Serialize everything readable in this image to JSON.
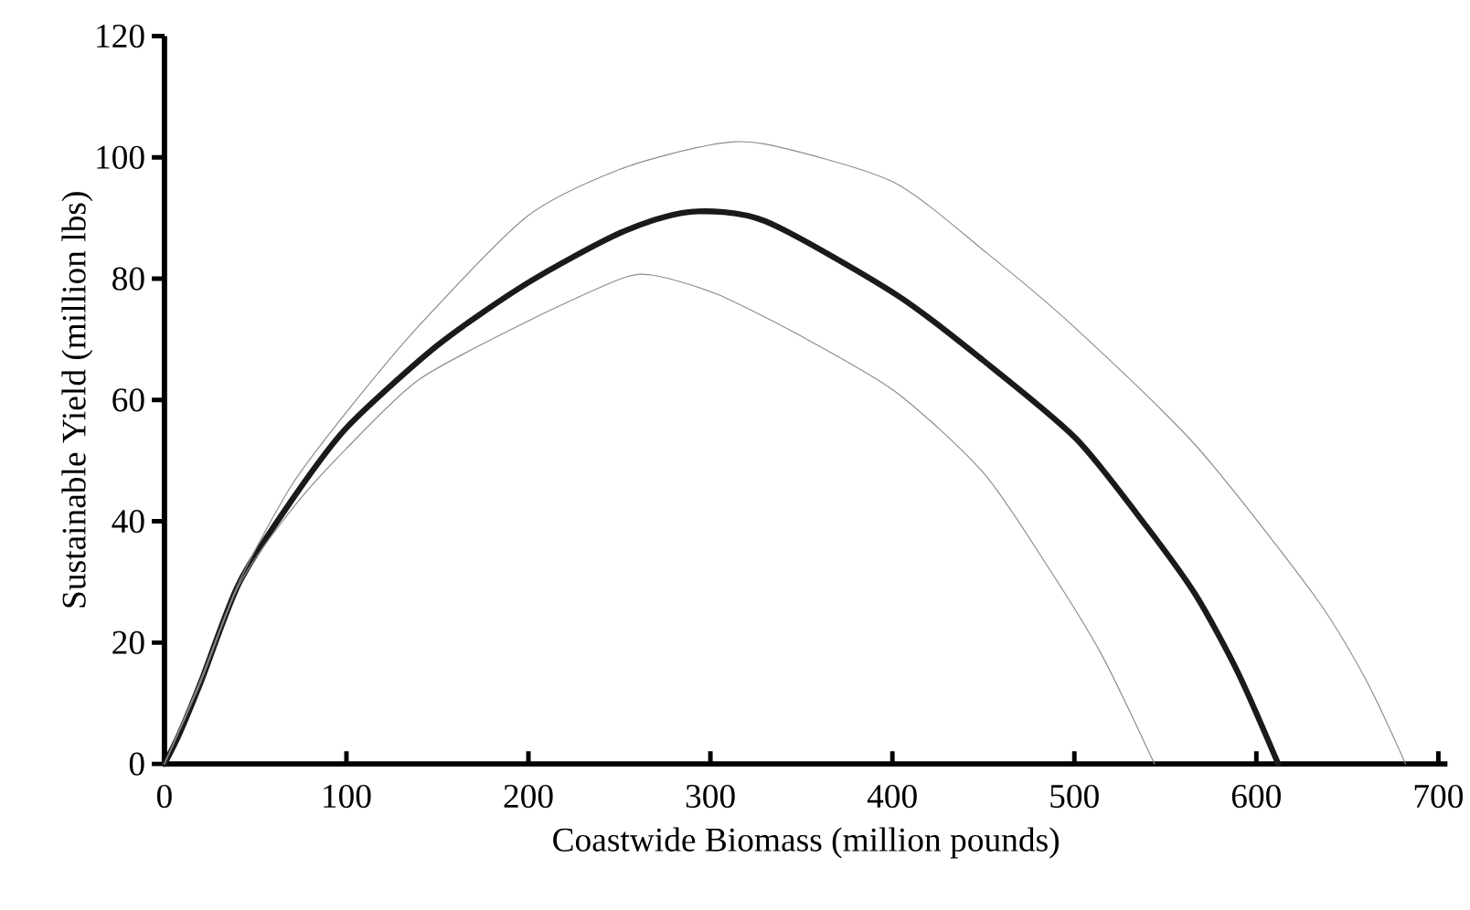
{
  "chart_data": {
    "type": "line",
    "xlabel": "Coastwide Biomass (million pounds)",
    "ylabel": "Sustainable Yield (million lbs)",
    "xlim": [
      0,
      705
    ],
    "ylim": [
      0,
      120
    ],
    "xticks": [
      0,
      100,
      200,
      300,
      400,
      500,
      600,
      700
    ],
    "yticks": [
      0,
      20,
      40,
      60,
      80,
      100,
      120
    ],
    "marker": "none",
    "line_style": "solid",
    "series": [
      {
        "color": "#1a1a1a",
        "x": [
          0,
          8,
          20,
          41,
          70,
          100,
          150,
          199,
          250,
          288,
          330,
          402,
          450,
          501,
          540,
          567,
          590,
          612
        ],
        "values": [
          0,
          4.8,
          13.5,
          29.8,
          43.5,
          55.4,
          69,
          79.2,
          87.5,
          91,
          89.5,
          77.4,
          66.5,
          53.6,
          39,
          27.7,
          15,
          0
        ]
      },
      {
        "color": "#8c8c8c",
        "x": [
          0,
          20,
          41,
          70,
          100,
          140,
          199,
          250,
          299,
          330,
          400,
          452,
          500,
          567,
          632,
          660,
          682
        ],
        "values": [
          0,
          14,
          30,
          46,
          58,
          72.3,
          90.2,
          98,
          102,
          102.2,
          96,
          84.2,
          72,
          52.4,
          27.7,
          14,
          0
        ]
      },
      {
        "color": "#8c8c8c",
        "x": [
          0,
          20,
          41,
          70,
          100,
          140,
          199,
          251,
          270,
          304,
          350,
          402,
          450,
          485,
          515,
          544
        ],
        "values": [
          0,
          13.5,
          29.5,
          42,
          52,
          63.4,
          72.9,
          80,
          80.5,
          77.4,
          70.5,
          61.3,
          48,
          32.7,
          18,
          0
        ]
      }
    ]
  }
}
